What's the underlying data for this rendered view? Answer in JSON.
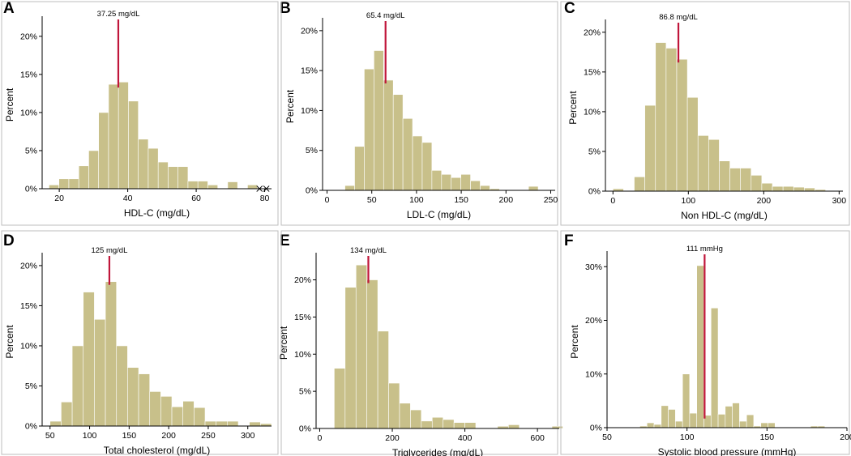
{
  "chart_data": [
    {
      "panel": "A",
      "type": "bar",
      "title": "",
      "xlabel": "HDL-C (mg/dL)",
      "ylabel": "Percent",
      "xlim": [
        15,
        82
      ],
      "ylim": [
        0,
        22
      ],
      "xticks": [
        20,
        40,
        60,
        80
      ],
      "yticks": [
        0,
        5,
        10,
        15,
        20
      ],
      "ytick_labels": [
        "0%",
        "5%",
        "10%",
        "15%",
        "20%"
      ],
      "bin_width": 2.9,
      "bins": [
        {
          "x0": 17.0,
          "value": 0.5
        },
        {
          "x0": 19.9,
          "value": 1.3
        },
        {
          "x0": 22.8,
          "value": 1.3
        },
        {
          "x0": 25.7,
          "value": 3.0
        },
        {
          "x0": 28.6,
          "value": 5.0
        },
        {
          "x0": 31.5,
          "value": 10.0
        },
        {
          "x0": 34.4,
          "value": 13.7
        },
        {
          "x0": 37.3,
          "value": 14.0
        },
        {
          "x0": 40.2,
          "value": 11.5
        },
        {
          "x0": 43.1,
          "value": 6.5
        },
        {
          "x0": 46.0,
          "value": 5.3
        },
        {
          "x0": 48.9,
          "value": 3.5
        },
        {
          "x0": 51.8,
          "value": 2.9
        },
        {
          "x0": 54.7,
          "value": 2.9
        },
        {
          "x0": 57.6,
          "value": 1.0
        },
        {
          "x0": 60.5,
          "value": 1.0
        },
        {
          "x0": 63.4,
          "value": 0.5
        },
        {
          "x0": 69.2,
          "value": 0.9
        },
        {
          "x0": 75.0,
          "value": 0.5
        }
      ],
      "median_value": 37.25,
      "median_label": "37.25 mg/dL",
      "outlier_markers": [
        78.5,
        80.5
      ]
    },
    {
      "panel": "B",
      "type": "bar",
      "title": "",
      "xlabel": "LDL-C (mg/dL)",
      "ylabel": "Percent",
      "xlim": [
        -5,
        255
      ],
      "ylim": [
        0,
        21
      ],
      "xticks": [
        0,
        50,
        100,
        150,
        200,
        250
      ],
      "yticks": [
        0,
        5,
        10,
        15,
        20
      ],
      "ytick_labels": [
        "0%",
        "5%",
        "10%",
        "15%",
        "20%"
      ],
      "bin_width": 10.8,
      "bins": [
        {
          "x0": 20.0,
          "value": 0.6
        },
        {
          "x0": 30.8,
          "value": 5.5
        },
        {
          "x0": 41.6,
          "value": 15.2
        },
        {
          "x0": 52.4,
          "value": 17.5
        },
        {
          "x0": 63.2,
          "value": 13.8
        },
        {
          "x0": 74.0,
          "value": 12.0
        },
        {
          "x0": 84.8,
          "value": 9.0
        },
        {
          "x0": 95.6,
          "value": 6.8
        },
        {
          "x0": 106.4,
          "value": 6.0
        },
        {
          "x0": 117.2,
          "value": 2.5
        },
        {
          "x0": 128.0,
          "value": 2.0
        },
        {
          "x0": 138.8,
          "value": 1.6
        },
        {
          "x0": 149.6,
          "value": 2.0
        },
        {
          "x0": 160.4,
          "value": 1.2
        },
        {
          "x0": 171.2,
          "value": 0.6
        },
        {
          "x0": 182.0,
          "value": 0.2
        },
        {
          "x0": 225.2,
          "value": 0.5
        }
      ],
      "median_value": 65.4,
      "median_label": "65.4 mg/dL"
    },
    {
      "panel": "C",
      "type": "bar",
      "title": "",
      "xlabel": "Non HDL-C (mg/dL)",
      "ylabel": "Percent",
      "xlim": [
        -10,
        305
      ],
      "ylim": [
        0,
        21
      ],
      "xticks": [
        0,
        100,
        200,
        300
      ],
      "yticks": [
        0,
        5,
        10,
        15,
        20
      ],
      "ytick_labels": [
        "0%",
        "5%",
        "10%",
        "15%",
        "20%"
      ],
      "bin_width": 14.1,
      "bins": [
        {
          "x0": 0.0,
          "value": 0.3
        },
        {
          "x0": 28.2,
          "value": 1.8
        },
        {
          "x0": 42.3,
          "value": 10.8
        },
        {
          "x0": 56.4,
          "value": 18.7
        },
        {
          "x0": 70.5,
          "value": 18.0
        },
        {
          "x0": 84.6,
          "value": 16.6
        },
        {
          "x0": 98.7,
          "value": 11.8
        },
        {
          "x0": 112.8,
          "value": 7.0
        },
        {
          "x0": 126.9,
          "value": 6.5
        },
        {
          "x0": 141.0,
          "value": 3.8
        },
        {
          "x0": 155.1,
          "value": 2.9
        },
        {
          "x0": 169.2,
          "value": 2.9
        },
        {
          "x0": 183.3,
          "value": 2.0
        },
        {
          "x0": 197.4,
          "value": 1.0
        },
        {
          "x0": 211.5,
          "value": 0.6
        },
        {
          "x0": 225.6,
          "value": 0.6
        },
        {
          "x0": 239.7,
          "value": 0.5
        },
        {
          "x0": 253.8,
          "value": 0.4
        },
        {
          "x0": 267.9,
          "value": 0.2
        }
      ],
      "median_value": 86.8,
      "median_label": "86.8 mg/dL"
    },
    {
      "panel": "D",
      "type": "bar",
      "title": "",
      "xlabel": "Total cholesterol (mg/dL)",
      "ylabel": "Percent",
      "xlim": [
        40,
        330
      ],
      "ylim": [
        0,
        21
      ],
      "xticks": [
        50,
        100,
        150,
        200,
        250,
        300
      ],
      "yticks": [
        0,
        5,
        10,
        15,
        20
      ],
      "ytick_labels": [
        "0%",
        "5%",
        "10%",
        "15%",
        "20%"
      ],
      "bin_width": 14.0,
      "bins": [
        {
          "x0": 50.0,
          "value": 0.6
        },
        {
          "x0": 64.0,
          "value": 3.0
        },
        {
          "x0": 78.0,
          "value": 10.0
        },
        {
          "x0": 92.0,
          "value": 16.7
        },
        {
          "x0": 106.0,
          "value": 13.3
        },
        {
          "x0": 120.0,
          "value": 18.0
        },
        {
          "x0": 134.0,
          "value": 10.0
        },
        {
          "x0": 148.0,
          "value": 7.3
        },
        {
          "x0": 162.0,
          "value": 6.5
        },
        {
          "x0": 176.0,
          "value": 4.3
        },
        {
          "x0": 190.0,
          "value": 3.7
        },
        {
          "x0": 204.0,
          "value": 2.4
        },
        {
          "x0": 218.0,
          "value": 3.1
        },
        {
          "x0": 232.0,
          "value": 2.3
        },
        {
          "x0": 246.0,
          "value": 0.6
        },
        {
          "x0": 260.0,
          "value": 0.6
        },
        {
          "x0": 274.0,
          "value": 0.6
        },
        {
          "x0": 302.0,
          "value": 0.5
        },
        {
          "x0": 316.0,
          "value": 0.3
        }
      ],
      "median_value": 125,
      "median_label": "125 mg/dL"
    },
    {
      "panel": "E",
      "type": "bar",
      "title": "",
      "xlabel": "Triglycerides (mg/dL)",
      "ylabel": "Percent",
      "xlim": [
        -10,
        660
      ],
      "ylim": [
        0,
        23
      ],
      "xticks": [
        0,
        200,
        400,
        600
      ],
      "yticks": [
        0,
        5,
        10,
        15,
        20
      ],
      "ytick_labels": [
        "0%",
        "5%",
        "10%",
        "15%",
        "20%"
      ],
      "bin_width": 30.0,
      "bins": [
        {
          "x0": 40.0,
          "value": 8.1
        },
        {
          "x0": 70.0,
          "value": 19.0
        },
        {
          "x0": 100.0,
          "value": 22.0
        },
        {
          "x0": 130.0,
          "value": 20.0
        },
        {
          "x0": 160.0,
          "value": 13.1
        },
        {
          "x0": 190.0,
          "value": 6.1
        },
        {
          "x0": 220.0,
          "value": 3.4
        },
        {
          "x0": 250.0,
          "value": 2.5
        },
        {
          "x0": 280.0,
          "value": 1.0
        },
        {
          "x0": 310.0,
          "value": 1.5
        },
        {
          "x0": 340.0,
          "value": 1.2
        },
        {
          "x0": 370.0,
          "value": 0.8
        },
        {
          "x0": 400.0,
          "value": 0.8
        },
        {
          "x0": 490.0,
          "value": 0.3
        },
        {
          "x0": 520.0,
          "value": 0.5
        },
        {
          "x0": 640.0,
          "value": 0.3
        }
      ],
      "median_value": 134,
      "median_label": "134 mg/dL"
    },
    {
      "panel": "F",
      "type": "bar",
      "title": "",
      "xlabel": "Systolic blood pressure (mmHg)",
      "ylabel": "Percent",
      "xlim": [
        50,
        200
      ],
      "ylim": [
        0,
        32
      ],
      "xticks": [
        50,
        100,
        150,
        200
      ],
      "yticks": [
        0,
        10,
        20,
        30
      ],
      "ytick_labels": [
        "0%",
        "10%",
        "20%",
        "30%"
      ],
      "bin_width": 4.45,
      "bins": [
        {
          "x0": 70.5,
          "value": 0.3
        },
        {
          "x0": 74.95,
          "value": 0.9
        },
        {
          "x0": 79.4,
          "value": 0.6
        },
        {
          "x0": 83.85,
          "value": 4.1
        },
        {
          "x0": 88.3,
          "value": 3.4
        },
        {
          "x0": 92.75,
          "value": 1.2
        },
        {
          "x0": 97.2,
          "value": 10.0
        },
        {
          "x0": 101.65,
          "value": 2.7
        },
        {
          "x0": 106.1,
          "value": 30.2
        },
        {
          "x0": 110.55,
          "value": 2.3
        },
        {
          "x0": 115.0,
          "value": 22.3
        },
        {
          "x0": 119.45,
          "value": 2.5
        },
        {
          "x0": 123.9,
          "value": 4.0
        },
        {
          "x0": 128.35,
          "value": 4.6
        },
        {
          "x0": 132.8,
          "value": 1.2
        },
        {
          "x0": 137.25,
          "value": 2.4
        },
        {
          "x0": 141.7,
          "value": 0.3
        },
        {
          "x0": 146.15,
          "value": 0.9
        },
        {
          "x0": 150.6,
          "value": 0.9
        },
        {
          "x0": 177.3,
          "value": 0.3
        },
        {
          "x0": 181.75,
          "value": 0.3
        }
      ],
      "median_value": 111,
      "median_label": "111 mmHg"
    }
  ]
}
